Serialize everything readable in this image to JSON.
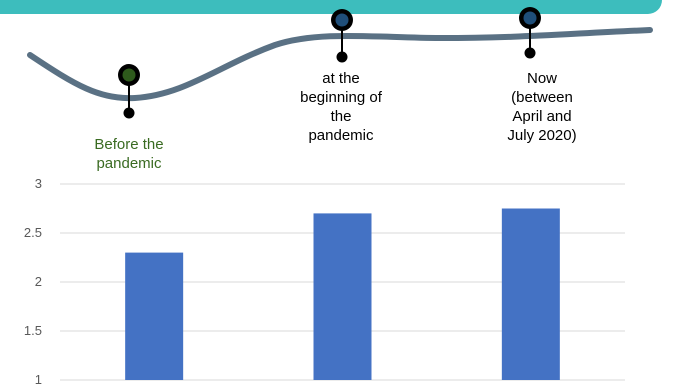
{
  "colors": {
    "band": "#3dbdbd",
    "wave": "#5a7184",
    "marker_before": "#2e5a1c",
    "marker_other": "#1f4e79",
    "bar": "#4472c4",
    "grid": "#d9d9d9",
    "label_before": "#3a6b22"
  },
  "timeline": {
    "labels": [
      "Before the\npandemic",
      "at the\nbeginning of\nthe\npandemic",
      "Now\n(between\nApril and\nJuly 2020)"
    ]
  },
  "chart_data": {
    "type": "bar",
    "categories": [
      "Before the pandemic",
      "at the beginning of the pandemic",
      "Now (between April and July 2020)"
    ],
    "values": [
      2.3,
      2.7,
      2.75
    ],
    "ylim": [
      1,
      3
    ],
    "yticks": [
      "1",
      "1.5",
      "2",
      "2.5",
      "3"
    ],
    "grid": true,
    "title": "",
    "xlabel": "",
    "ylabel": ""
  }
}
